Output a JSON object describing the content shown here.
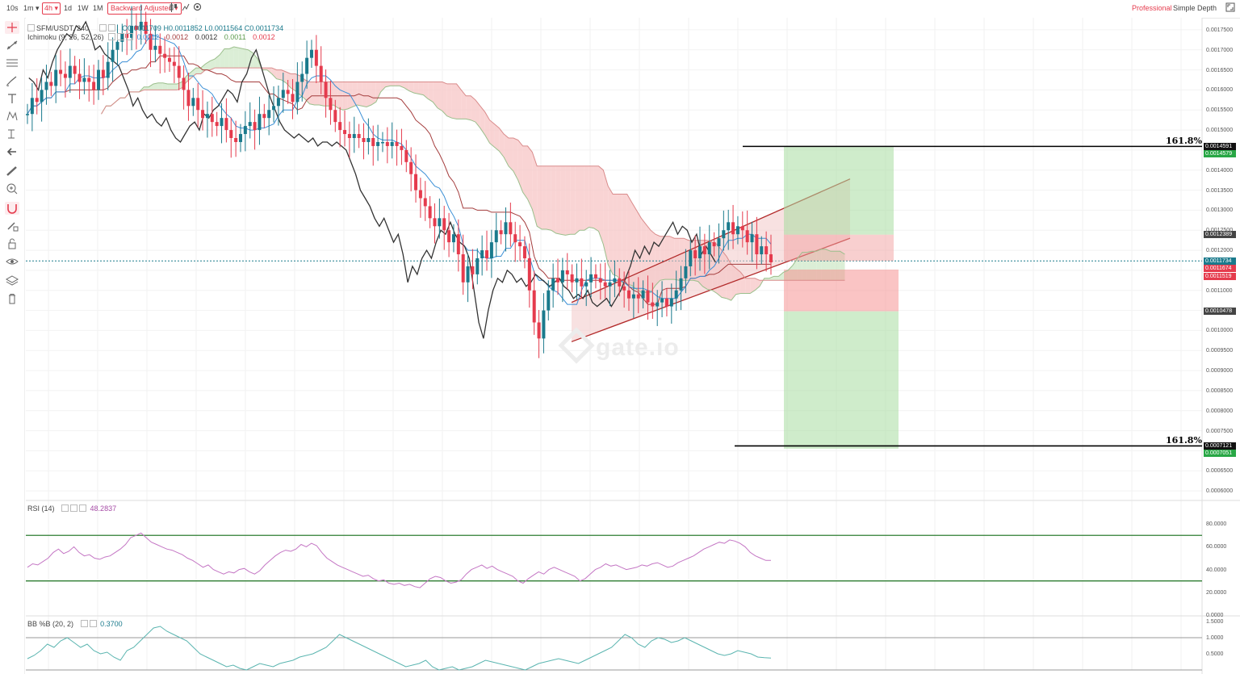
{
  "toolbar_top": {
    "intervals": [
      "10s",
      "1m ▾",
      "4h ▾",
      "1d",
      "1W",
      "1M"
    ],
    "adjust": "Backward Adjusted ▾",
    "views": [
      "Professional",
      "Simple",
      "Depth"
    ]
  },
  "chart_legend": {
    "symbol": "SFM/USDT, 240",
    "ohlc": "O0.0011709  H0.0011852  L0.0011564  C0.0011734",
    "ichimoku": "Ichimoku (9, 26, 52, 26)",
    "ichimoku_values": [
      "0.0012",
      "0.0012",
      "0.0012",
      "0.0011",
      "0.0012"
    ],
    "rsi_label": "RSI (14)",
    "rsi_value": "48.2837",
    "bb_label": "BB %B (20, 2)",
    "bb_value": "0.3700"
  },
  "watermark": "gate.io",
  "colors": {
    "up": "#1a7a8c",
    "down": "#e53b4d",
    "cloud_bear": "#f7c6c6",
    "cloud_bull": "#cfe8c8",
    "rsi": "#c476c4",
    "bb": "#5bb5b0",
    "kijun": "#a43c3c",
    "tenkan": "#3a8fd6",
    "chikou": "#333333"
  },
  "chart_data": {
    "type": "candlestick",
    "price_axis": {
      "ticks": [
        "0.0017500",
        "0.0017000",
        "0.0016500",
        "0.0016000",
        "0.0015500",
        "0.0015000",
        "0.0014500",
        "0.0014000",
        "0.0013500",
        "0.0013000",
        "0.0012500",
        "0.0012000",
        "0.0011500",
        "0.0011000",
        "0.0010500",
        "0.0010000",
        "0.0009500",
        "0.0009000",
        "0.0008500",
        "0.0008000",
        "0.0007500",
        "0.0007000",
        "0.0006500",
        "0.0006000"
      ],
      "range": [
        0.00058,
        0.00178
      ]
    },
    "price_tags": [
      {
        "label": "0.0014591",
        "value": 0.0014591,
        "color": "#111111"
      },
      {
        "label": "0.0014579",
        "value": 0.0014579,
        "color": "#28a745"
      },
      {
        "label": "0.0012389",
        "value": 0.0012389,
        "color": "#444444"
      },
      {
        "label": "0.0011734",
        "value": 0.0011734,
        "color": "#1a7a8c"
      },
      {
        "label": "0.0011674",
        "value": 0.0011674,
        "color": "#e53b4d"
      },
      {
        "label": "0.0011519",
        "value": 0.0011519,
        "color": "#e53b4d"
      },
      {
        "label": "0.0010478",
        "value": 0.0010478,
        "color": "#444444"
      },
      {
        "label": "0.0007121",
        "value": 0.0007121,
        "color": "#111111"
      },
      {
        "label": "0.0007051",
        "value": 0.0007051,
        "color": "#28a745"
      }
    ],
    "fib_levels": [
      {
        "label": "161.8%",
        "value": 0.0014591
      },
      {
        "label": "161.8%",
        "value": 0.0007121
      }
    ],
    "close": [
      0.00154,
      0.00158,
      0.00157,
      0.0016,
      0.00162,
      0.00161,
      0.00165,
      0.00164,
      0.00163,
      0.00166,
      0.00164,
      0.00162,
      0.00163,
      0.00162,
      0.0016,
      0.00165,
      0.00163,
      0.00167,
      0.0017,
      0.00172,
      0.00174,
      0.00173,
      0.00176,
      0.00175,
      0.00177,
      0.00174,
      0.0017,
      0.00171,
      0.00169,
      0.00168,
      0.00167,
      0.00166,
      0.00163,
      0.0016,
      0.00156,
      0.00158,
      0.00155,
      0.00153,
      0.00154,
      0.00152,
      0.00151,
      0.00153,
      0.0015,
      0.00148,
      0.00147,
      0.00149,
      0.00151,
      0.00152,
      0.0015,
      0.00154,
      0.00153,
      0.00155,
      0.00156,
      0.00158,
      0.0016,
      0.00159,
      0.00157,
      0.00162,
      0.00164,
      0.00168,
      0.0017,
      0.00166,
      0.00162,
      0.00158,
      0.00155,
      0.00152,
      0.0015,
      0.00149,
      0.00148,
      0.00149,
      0.00148,
      0.00147,
      0.00148,
      0.00146,
      0.00147,
      0.00147,
      0.00146,
      0.00147,
      0.00146,
      0.00145,
      0.00142,
      0.00139,
      0.00135,
      0.00133,
      0.00131,
      0.00128,
      0.00126,
      0.00128,
      0.00125,
      0.00122,
      0.00124,
      0.00119,
      0.00112,
      0.00116,
      0.00114,
      0.00118,
      0.0012,
      0.00118,
      0.00122,
      0.00125,
      0.00124,
      0.00127,
      0.00124,
      0.00122,
      0.00121,
      0.00118,
      0.0011,
      0.00102,
      0.00098,
      0.00105,
      0.0011,
      0.00113,
      0.00112,
      0.00115,
      0.00114,
      0.00112,
      0.00113,
      0.00111,
      0.00112,
      0.00114,
      0.00113,
      0.00112,
      0.00111,
      0.00112,
      0.00113,
      0.00111,
      0.0011,
      0.00108,
      0.00109,
      0.00108,
      0.0011,
      0.00107,
      0.00106,
      0.00107,
      0.00108,
      0.00106,
      0.00108,
      0.0011,
      0.00113,
      0.00116,
      0.0012,
      0.00118,
      0.00121,
      0.00119,
      0.00122,
      0.00121,
      0.00123,
      0.00125,
      0.00127,
      0.00124,
      0.00126,
      0.00125,
      0.00122,
      0.00124,
      0.00119,
      0.00121,
      0.00119,
      0.00117
    ],
    "open_offset_note": "",
    "rsi": {
      "axis": [
        "80.0000",
        "60.0000",
        "40.0000",
        "20.0000",
        "0.0000"
      ],
      "range": [
        0,
        95
      ],
      "levels": [
        30,
        70
      ],
      "values": [
        42,
        45,
        44,
        47,
        50,
        55,
        58,
        54,
        56,
        60,
        55,
        52,
        53,
        50,
        49,
        51,
        52,
        55,
        58,
        62,
        68,
        70,
        72,
        68,
        64,
        62,
        60,
        58,
        57,
        55,
        53,
        50,
        48,
        45,
        42,
        44,
        40,
        38,
        36,
        38,
        37,
        40,
        41,
        38,
        36,
        39,
        44,
        48,
        52,
        55,
        57,
        56,
        58,
        62,
        60,
        63,
        61,
        55,
        50,
        47,
        44,
        42,
        40,
        38,
        36,
        34,
        35,
        32,
        30,
        31,
        28,
        27,
        28,
        26,
        27,
        25,
        24,
        28,
        32,
        34,
        33,
        30,
        28,
        29,
        31,
        36,
        40,
        42,
        44,
        41,
        43,
        40,
        38,
        36,
        34,
        30,
        28,
        32,
        35,
        38,
        36,
        40,
        42,
        40,
        38,
        36,
        34,
        30,
        32,
        36,
        40,
        42,
        45,
        43,
        44,
        42,
        40,
        41,
        42,
        44,
        43,
        45,
        46,
        44,
        42,
        43,
        46,
        48,
        50,
        52,
        55,
        58,
        60,
        62,
        64,
        63,
        66,
        65,
        63,
        60,
        55,
        52,
        50,
        48,
        48
      ]
    },
    "bb": {
      "axis": [
        "1.5000",
        "1.0000",
        "0.5000"
      ],
      "range": [
        -0.05,
        1.55
      ],
      "levels": [
        0,
        1
      ],
      "values": [
        0.35,
        0.45,
        0.6,
        0.8,
        0.7,
        0.9,
        1.0,
        0.85,
        0.7,
        0.8,
        0.6,
        0.5,
        0.55,
        0.4,
        0.3,
        0.6,
        0.7,
        0.9,
        1.1,
        1.3,
        1.35,
        1.2,
        1.1,
        1.0,
        0.9,
        0.7,
        0.5,
        0.4,
        0.3,
        0.2,
        0.1,
        0.15,
        0.05,
        0.0,
        0.1,
        0.2,
        0.15,
        0.1,
        0.2,
        0.25,
        0.3,
        0.4,
        0.45,
        0.5,
        0.6,
        0.7,
        0.9,
        1.1,
        1.0,
        0.9,
        0.8,
        0.7,
        0.6,
        0.5,
        0.4,
        0.3,
        0.2,
        0.1,
        0.15,
        0.2,
        0.3,
        0.1,
        0.0,
        0.05,
        0.1,
        0.0,
        0.05,
        0.1,
        0.2,
        0.3,
        0.25,
        0.2,
        0.15,
        0.1,
        0.05,
        0.0,
        0.1,
        0.2,
        0.25,
        0.3,
        0.35,
        0.3,
        0.25,
        0.2,
        0.3,
        0.4,
        0.5,
        0.6,
        0.7,
        0.9,
        1.1,
        1.0,
        0.8,
        0.7,
        0.9,
        1.0,
        0.95,
        0.85,
        0.9,
        1.0,
        0.9,
        0.8,
        0.7,
        0.6,
        0.5,
        0.45,
        0.5,
        0.6,
        0.55,
        0.5,
        0.4,
        0.38,
        0.37
      ]
    }
  }
}
